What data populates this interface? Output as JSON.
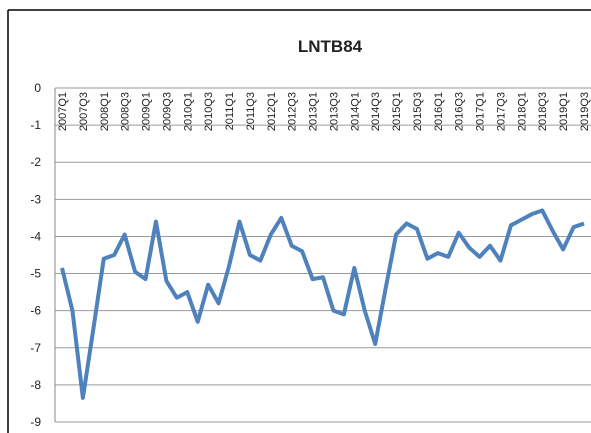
{
  "chart_data": {
    "type": "line",
    "title": "LNTB84",
    "categories": [
      "2007Q1",
      null,
      "2007Q3",
      null,
      "2008Q1",
      null,
      "2008Q3",
      null,
      "2009Q1",
      null,
      "2009Q3",
      null,
      "2010Q1",
      null,
      "2010Q3",
      null,
      "2011Q1",
      null,
      "2011Q3",
      null,
      "2012Q1",
      null,
      "2012Q3",
      null,
      "2013Q1",
      null,
      "2013Q3",
      null,
      "2014Q1",
      null,
      "2014Q3",
      null,
      "2015Q1",
      null,
      "2015Q3",
      null,
      "2016Q1",
      null,
      "2016Q3",
      null,
      "2017Q1",
      null,
      "2017Q3",
      null,
      "2018Q1",
      null,
      "2018Q3",
      null,
      "2019Q1",
      null,
      "2019Q3"
    ],
    "series": [
      {
        "name": "LNTB84",
        "color": "#4f81bd",
        "values": [
          -4.85,
          -6.0,
          -8.35,
          -6.5,
          -4.6,
          -4.5,
          -3.95,
          -4.95,
          -5.15,
          -3.6,
          -5.2,
          -5.65,
          -5.5,
          -6.3,
          -5.3,
          -5.8,
          -4.8,
          -3.6,
          -4.5,
          -4.65,
          -3.95,
          -3.5,
          -4.25,
          -4.4,
          -5.15,
          -5.1,
          -6.0,
          -6.1,
          -4.85,
          -6.0,
          -6.9,
          -5.4,
          -3.95,
          -3.65,
          -3.8,
          -4.6,
          -4.45,
          -4.55,
          -3.9,
          -4.3,
          -4.55,
          -4.25,
          -4.65,
          -3.7,
          -3.55,
          -3.4,
          -3.3,
          -3.85,
          -4.35,
          -3.75,
          -3.65
        ]
      }
    ],
    "ylim": [
      -9,
      0
    ],
    "yticks": [
      0,
      -1,
      -2,
      -3,
      -4,
      -5,
      -6,
      -7,
      -8,
      -9
    ],
    "grid": true
  }
}
